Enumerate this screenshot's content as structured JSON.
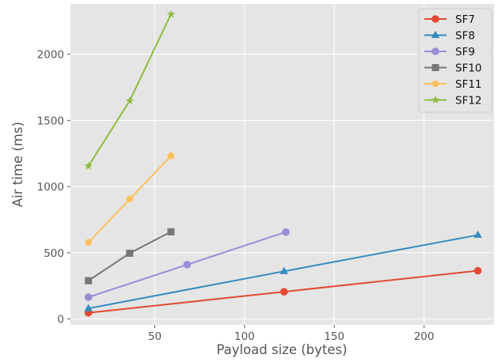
{
  "chart_data": {
    "type": "line",
    "xlabel": "Payload size (bytes)",
    "ylabel": "Air time (ms)",
    "xlim": [
      3,
      239
    ],
    "ylim": [
      -45,
      2380
    ],
    "xticks": [
      50,
      100,
      150,
      200
    ],
    "yticks": [
      0,
      500,
      1000,
      1500,
      2000
    ],
    "grid": true,
    "legend_position": "top-right",
    "series": [
      {
        "name": "SF7",
        "color": "#e24a33",
        "marker": "circle",
        "x": [
          13,
          122,
          230
        ],
        "y": [
          46,
          205,
          364
        ]
      },
      {
        "name": "SF8",
        "color": "#348abd",
        "marker": "triangle",
        "x": [
          13,
          122,
          230
        ],
        "y": [
          79,
          360,
          634
        ]
      },
      {
        "name": "SF9",
        "color": "#988ed5",
        "marker": "circle",
        "x": [
          13,
          68,
          123
        ],
        "y": [
          164,
          410,
          656
        ]
      },
      {
        "name": "SF10",
        "color": "#777777",
        "marker": "square",
        "x": [
          13,
          36,
          59
        ],
        "y": [
          289,
          496,
          658
        ]
      },
      {
        "name": "SF11",
        "color": "#fbc15e",
        "marker": "pentagon",
        "x": [
          13,
          36,
          59
        ],
        "y": [
          578,
          905,
          1232
        ]
      },
      {
        "name": "SF12",
        "color": "#8eba42",
        "marker": "star",
        "x": [
          13,
          36,
          59
        ],
        "y": [
          1155,
          1648,
          2302
        ]
      }
    ]
  }
}
